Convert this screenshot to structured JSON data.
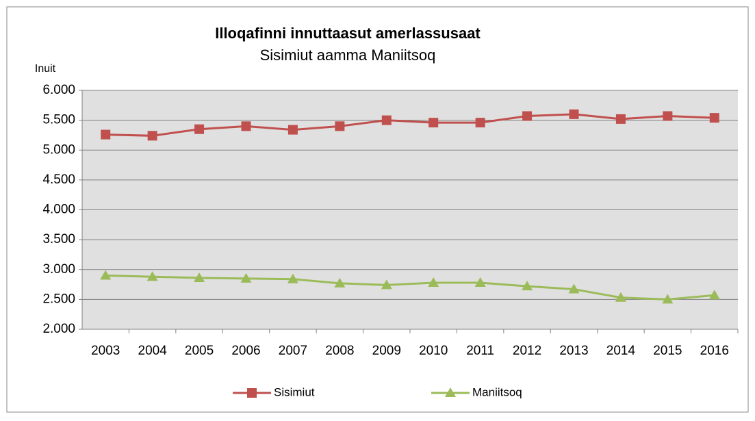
{
  "chart_data": {
    "type": "line",
    "title": "Illoqafinni innuttaasut amerlassusaat",
    "subtitle": "Sisimiut aamma Maniitsoq",
    "y_label": "Inuit",
    "categories": [
      "2003",
      "2004",
      "2005",
      "2006",
      "2007",
      "2008",
      "2009",
      "2010",
      "2011",
      "2012",
      "2013",
      "2014",
      "2015",
      "2016"
    ],
    "series": [
      {
        "name": "Sisimiut",
        "color": "#c0504d",
        "marker": "square",
        "values": [
          5260,
          5240,
          5350,
          5400,
          5340,
          5400,
          5500,
          5460,
          5460,
          5570,
          5600,
          5520,
          5570,
          5540
        ]
      },
      {
        "name": "Maniitsoq",
        "color": "#9bbb59",
        "marker": "triangle",
        "values": [
          2900,
          2880,
          2860,
          2850,
          2840,
          2770,
          2740,
          2780,
          2780,
          2720,
          2670,
          2530,
          2500,
          2570
        ]
      }
    ],
    "ylim": [
      2000,
      6000
    ],
    "yticks": [
      {
        "value": 2000,
        "label": "2.000"
      },
      {
        "value": 2500,
        "label": "2.500"
      },
      {
        "value": 3000,
        "label": "3.000"
      },
      {
        "value": 3500,
        "label": "3.500"
      },
      {
        "value": 4000,
        "label": "4.000"
      },
      {
        "value": 4500,
        "label": "4.500"
      },
      {
        "value": 5000,
        "label": "5.000"
      },
      {
        "value": 5500,
        "label": "5.500"
      },
      {
        "value": 6000,
        "label": "6.000"
      }
    ],
    "grid": true,
    "legend": "bottom"
  }
}
